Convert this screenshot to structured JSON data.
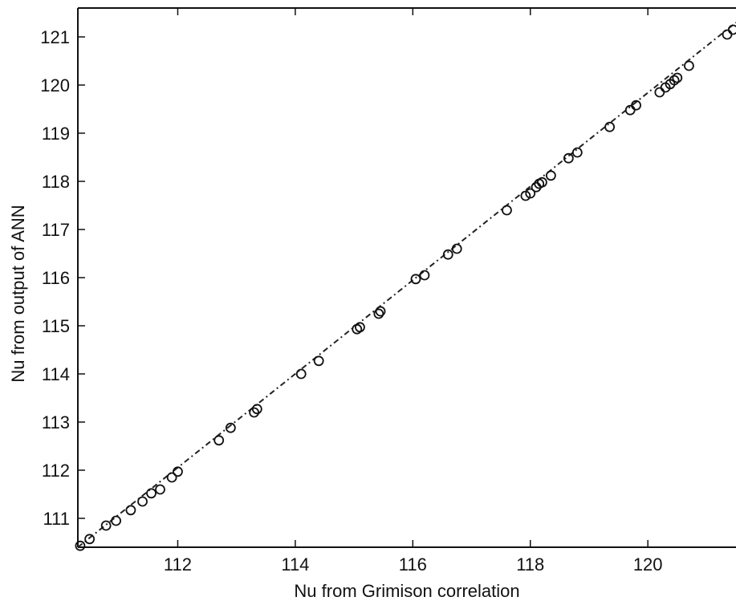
{
  "chart_data": {
    "type": "scatter",
    "title": "",
    "xlabel": "Nu from Grimison correlation",
    "ylabel": "Nu from output of ANN",
    "xlim": [
      110.3,
      121.5
    ],
    "ylim": [
      110.4,
      121.6
    ],
    "xticks": [
      112,
      114,
      116,
      118,
      120
    ],
    "yticks": [
      111,
      112,
      113,
      114,
      115,
      116,
      117,
      118,
      119,
      120,
      121
    ],
    "grid": false,
    "marker": "open-circle",
    "fit_line": {
      "style": "dash-dot",
      "x": [
        110.3,
        121.5
      ],
      "y": [
        110.4,
        121.3
      ]
    },
    "series": [
      {
        "x": [
          110.34,
          110.5,
          110.78,
          110.95,
          111.2,
          111.4,
          111.55,
          111.7,
          111.9,
          112.0,
          112.7,
          112.9,
          113.3,
          113.35,
          114.1,
          114.4,
          115.05,
          115.1,
          115.42,
          115.45,
          116.05,
          116.2,
          116.6,
          116.75,
          117.6,
          117.92,
          118.0,
          118.1,
          118.15,
          118.2,
          118.35,
          118.65,
          118.8,
          119.35,
          119.7,
          119.8,
          120.2,
          120.3,
          120.38,
          120.45,
          120.5,
          120.7,
          121.35,
          121.45
        ],
        "y": [
          110.43,
          110.57,
          110.85,
          110.95,
          111.17,
          111.35,
          111.52,
          111.6,
          111.85,
          111.97,
          112.62,
          112.88,
          113.2,
          113.27,
          114.0,
          114.27,
          114.93,
          114.97,
          115.25,
          115.3,
          115.97,
          116.05,
          116.48,
          116.6,
          117.4,
          117.7,
          117.75,
          117.88,
          117.95,
          117.98,
          118.12,
          118.48,
          118.6,
          119.13,
          119.48,
          119.58,
          119.85,
          119.95,
          120.02,
          120.1,
          120.15,
          120.4,
          121.05,
          121.15
        ]
      }
    ]
  }
}
